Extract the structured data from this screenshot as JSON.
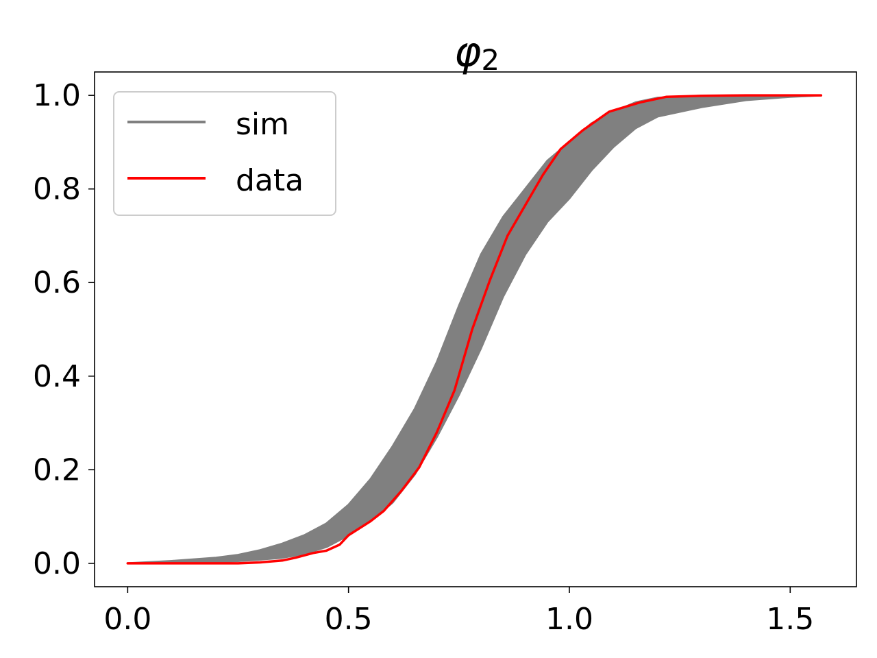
{
  "chart_data": {
    "type": "line",
    "title": "φ",
    "title_subscript": "2",
    "xlabel": "",
    "ylabel": "",
    "xlim": [
      -0.075,
      1.65
    ],
    "ylim": [
      -0.05,
      1.05
    ],
    "x_ticks": [
      0.0,
      0.5,
      1.0,
      1.5
    ],
    "x_tick_labels": [
      "0.0",
      "0.5",
      "1.0",
      "1.5"
    ],
    "y_ticks": [
      0.0,
      0.2,
      0.4,
      0.6,
      0.8,
      1.0
    ],
    "y_tick_labels": [
      "0.0",
      "0.2",
      "0.4",
      "0.6",
      "0.8",
      "1.0"
    ],
    "grid": false,
    "legend_position": "top-left",
    "legend": [
      {
        "label": "sim",
        "color": "#808080"
      },
      {
        "label": "data",
        "color": "#ff0000"
      }
    ],
    "sim_band": {
      "name": "sim",
      "color": "#808080",
      "x": [
        0.0,
        0.1,
        0.2,
        0.25,
        0.3,
        0.35,
        0.4,
        0.45,
        0.5,
        0.55,
        0.6,
        0.65,
        0.7,
        0.75,
        0.8,
        0.85,
        0.9,
        0.95,
        1.0,
        1.05,
        1.1,
        1.15,
        1.2,
        1.3,
        1.4,
        1.5,
        1.57
      ],
      "upper": [
        0.0,
        0.005,
        0.012,
        0.018,
        0.028,
        0.042,
        0.06,
        0.085,
        0.125,
        0.18,
        0.25,
        0.33,
        0.43,
        0.55,
        0.66,
        0.74,
        0.8,
        0.86,
        0.9,
        0.94,
        0.965,
        0.985,
        0.995,
        0.999,
        1.0,
        1.0,
        1.0
      ],
      "lower": [
        0.0,
        0.0,
        0.003,
        0.005,
        0.008,
        0.012,
        0.02,
        0.035,
        0.06,
        0.09,
        0.13,
        0.19,
        0.27,
        0.36,
        0.46,
        0.57,
        0.66,
        0.73,
        0.78,
        0.84,
        0.89,
        0.93,
        0.955,
        0.975,
        0.99,
        0.997,
        1.0
      ]
    },
    "series": [
      {
        "name": "data",
        "color": "#ff0000",
        "x": [
          0.0,
          0.1,
          0.2,
          0.25,
          0.3,
          0.35,
          0.38,
          0.42,
          0.45,
          0.48,
          0.5,
          0.55,
          0.58,
          0.62,
          0.66,
          0.7,
          0.74,
          0.78,
          0.82,
          0.86,
          0.9,
          0.94,
          0.98,
          1.03,
          1.09,
          1.16,
          1.22,
          1.3,
          1.4,
          1.57
        ],
        "y": [
          0.0,
          0.0,
          0.0,
          0.0,
          0.002,
          0.006,
          0.012,
          0.022,
          0.027,
          0.04,
          0.06,
          0.09,
          0.112,
          0.155,
          0.205,
          0.28,
          0.37,
          0.5,
          0.605,
          0.7,
          0.765,
          0.83,
          0.885,
          0.925,
          0.965,
          0.985,
          0.997,
          0.999,
          1.0,
          1.0
        ]
      }
    ]
  }
}
